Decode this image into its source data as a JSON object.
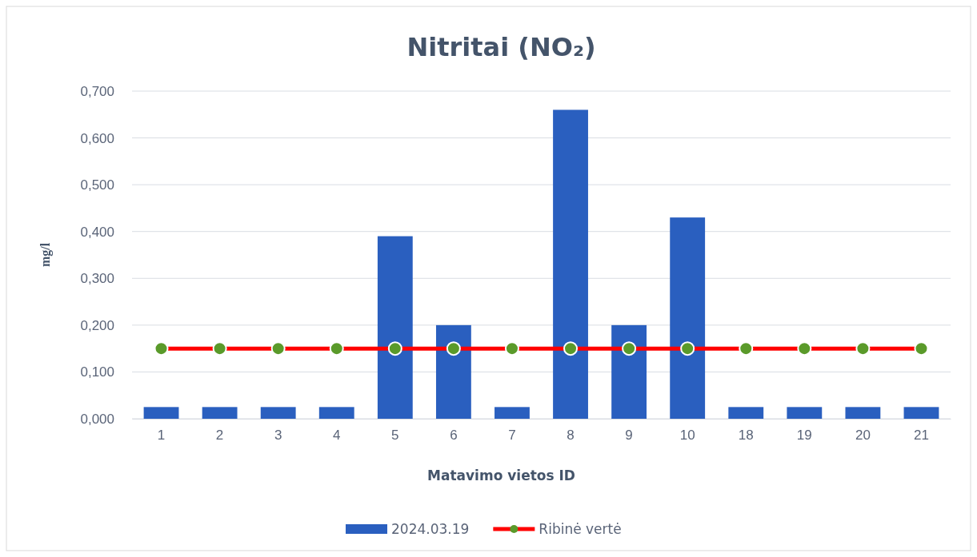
{
  "chart_data": {
    "type": "bar",
    "title": "Nitritai (NO₂)",
    "xlabel": "Matavimo vietos ID",
    "ylabel": "mg/l",
    "categories": [
      "1",
      "2",
      "3",
      "4",
      "5",
      "6",
      "7",
      "8",
      "9",
      "10",
      "18",
      "19",
      "20",
      "21"
    ],
    "series": [
      {
        "name": "2024.03.19",
        "color": "#2a5fbf",
        "values": [
          0.025,
          0.025,
          0.025,
          0.025,
          0.39,
          0.2,
          0.025,
          0.66,
          0.2,
          0.43,
          0.025,
          0.025,
          0.025,
          0.025
        ]
      },
      {
        "name": "Ribinė vertė",
        "type": "line",
        "color": "#ff0000",
        "marker": "circle",
        "values": [
          0.15,
          0.15,
          0.15,
          0.15,
          0.15,
          0.15,
          0.15,
          0.15,
          0.15,
          0.15,
          0.15,
          0.15,
          0.15,
          0.15
        ]
      }
    ],
    "ylim": [
      0,
      0.7
    ],
    "yticks": [
      {
        "value": 0,
        "label": "0,000"
      },
      {
        "value": 0.1,
        "label": "0,100"
      },
      {
        "value": 0.2,
        "label": "0,200"
      },
      {
        "value": 0.3,
        "label": "0,300"
      },
      {
        "value": 0.4,
        "label": "0,400"
      },
      {
        "value": 0.5,
        "label": "0,500"
      },
      {
        "value": 0.6,
        "label": "0,600"
      },
      {
        "value": 0.7,
        "label": "0,700"
      }
    ],
    "grid": "y",
    "legend": "bottom"
  }
}
